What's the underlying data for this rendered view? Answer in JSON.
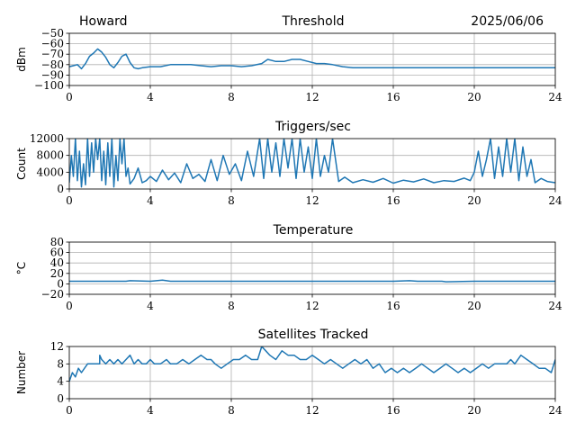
{
  "header": {
    "left": "Howard",
    "center": "Threshold",
    "right": "2025/06/06"
  },
  "colors": {
    "series": "#1f77b4",
    "grid": "#b0b0b0"
  },
  "chart_data": [
    {
      "type": "line",
      "title": "Threshold",
      "ylabel": "dBm",
      "xlim": [
        0,
        24
      ],
      "ylim": [
        -100,
        -50
      ],
      "xticks": [
        0,
        4,
        8,
        12,
        16,
        20,
        24
      ],
      "yticks": [
        -100,
        -90,
        -80,
        -70,
        -60,
        -50
      ],
      "ytick_labels": [
        "−100",
        "−90",
        "−80",
        "−70",
        "−60",
        "−50"
      ],
      "grid": true,
      "series": [
        {
          "x": [
            0,
            0.2,
            0.4,
            0.6,
            0.8,
            1.0,
            1.2,
            1.4,
            1.6,
            1.8,
            2.0,
            2.2,
            2.4,
            2.6,
            2.8,
            3.0,
            3.2,
            3.4,
            3.6,
            4.0,
            4.5,
            5.0,
            5.5,
            6.0,
            6.5,
            7.0,
            7.5,
            8.0,
            8.5,
            9.0,
            9.5,
            9.8,
            10.2,
            10.6,
            11.0,
            11.4,
            11.8,
            12.2,
            12.6,
            13.0,
            13.5,
            14,
            15,
            16,
            17,
            18,
            19,
            20,
            21,
            22,
            23,
            24
          ],
          "y": [
            -82,
            -81,
            -80,
            -84,
            -79,
            -72,
            -69,
            -65,
            -68,
            -73,
            -80,
            -83,
            -78,
            -72,
            -70,
            -78,
            -83,
            -84,
            -83,
            -82,
            -82,
            -80,
            -80,
            -80,
            -81,
            -82,
            -81,
            -81,
            -82,
            -81,
            -79,
            -75,
            -77,
            -77,
            -75,
            -75,
            -77,
            -79,
            -79,
            -80,
            -82,
            -83,
            -83,
            -83,
            -83,
            -83,
            -83,
            -83,
            -83,
            -83,
            -83,
            -83
          ]
        }
      ]
    },
    {
      "type": "line",
      "title": "Triggers/sec",
      "ylabel": "Count",
      "xlim": [
        0,
        24
      ],
      "ylim": [
        0,
        12000
      ],
      "xticks": [
        0,
        4,
        8,
        12,
        16,
        20,
        24
      ],
      "yticks": [
        0,
        4000,
        8000,
        12000
      ],
      "ytick_labels": [
        "0",
        "4000",
        "8000",
        "12000"
      ],
      "grid": true,
      "series": [
        {
          "x": [
            0,
            0.1,
            0.2,
            0.3,
            0.4,
            0.5,
            0.6,
            0.7,
            0.8,
            0.9,
            1.0,
            1.1,
            1.2,
            1.3,
            1.4,
            1.5,
            1.6,
            1.7,
            1.8,
            1.9,
            2.0,
            2.1,
            2.2,
            2.3,
            2.4,
            2.5,
            2.6,
            2.7,
            2.8,
            2.9,
            3.0,
            3.2,
            3.4,
            3.6,
            3.8,
            4.0,
            4.3,
            4.6,
            4.9,
            5.2,
            5.5,
            5.8,
            6.1,
            6.4,
            6.7,
            7.0,
            7.3,
            7.6,
            7.9,
            8.2,
            8.5,
            8.8,
            9.1,
            9.4,
            9.6,
            9.8,
            10.0,
            10.2,
            10.4,
            10.6,
            10.8,
            11.0,
            11.2,
            11.4,
            11.6,
            11.8,
            12.0,
            12.2,
            12.4,
            12.6,
            12.8,
            13.0,
            13.3,
            13.6,
            14.0,
            14.5,
            15.0,
            15.5,
            16.0,
            16.5,
            17.0,
            17.5,
            18.0,
            18.5,
            19.0,
            19.5,
            19.8,
            20.0,
            20.2,
            20.4,
            20.6,
            20.8,
            21.0,
            21.2,
            21.4,
            21.6,
            21.8,
            22.0,
            22.2,
            22.4,
            22.6,
            22.8,
            23.0,
            23.3,
            23.6,
            24.0
          ],
          "y": [
            1500,
            8000,
            3000,
            12000,
            2000,
            9000,
            500,
            6000,
            1000,
            12000,
            3000,
            11000,
            4000,
            12000,
            7000,
            12000,
            2000,
            9000,
            1000,
            11000,
            3000,
            12000,
            500,
            8000,
            2000,
            12000,
            6000,
            12000,
            3000,
            5000,
            1200,
            2500,
            5000,
            1500,
            2000,
            3000,
            1800,
            4500,
            2200,
            3800,
            1500,
            6000,
            2500,
            3500,
            1800,
            7000,
            2000,
            8000,
            3500,
            6000,
            2000,
            9000,
            3000,
            12000,
            2500,
            12000,
            4000,
            11000,
            3000,
            12000,
            5000,
            12000,
            2500,
            12000,
            4000,
            10000,
            2500,
            12000,
            3000,
            8000,
            4000,
            12000,
            1800,
            2800,
            1500,
            2200,
            1600,
            2500,
            1400,
            2100,
            1700,
            2400,
            1500,
            2000,
            1800,
            2600,
            2000,
            4000,
            9000,
            3000,
            7000,
            12000,
            2500,
            10000,
            3000,
            12000,
            4000,
            12000,
            2000,
            10000,
            3000,
            7000,
            1500,
            2500,
            1800,
            1500
          ]
        }
      ]
    },
    {
      "type": "line",
      "title": "Temperature",
      "ylabel": "°C",
      "xlim": [
        0,
        24
      ],
      "ylim": [
        -20,
        80
      ],
      "xticks": [
        0,
        4,
        8,
        12,
        16,
        20,
        24
      ],
      "yticks": [
        -20,
        0,
        20,
        40,
        60,
        80
      ],
      "ytick_labels": [
        "−20",
        "0",
        "20",
        "40",
        "60",
        "80"
      ],
      "grid": true,
      "series": [
        {
          "x": [
            0,
            2,
            2.8,
            3.0,
            4,
            4.3,
            4.6,
            5,
            8,
            12,
            16,
            16.8,
            17.2,
            18.4,
            18.6,
            20,
            24
          ],
          "y": [
            5,
            5,
            5,
            6,
            5,
            6,
            7,
            5,
            5,
            5,
            5,
            6,
            5,
            5,
            4,
            5,
            5
          ]
        }
      ]
    },
    {
      "type": "line",
      "title": "Satellites Tracked",
      "ylabel": "Number",
      "xlim": [
        0,
        24
      ],
      "ylim": [
        0,
        12
      ],
      "xticks": [
        0,
        4,
        8,
        12,
        16,
        20,
        24
      ],
      "yticks": [
        0,
        4,
        8,
        12
      ],
      "ytick_labels": [
        "0",
        "4",
        "8",
        "12"
      ],
      "grid": true,
      "series": [
        {
          "x": [
            0,
            0.15,
            0.3,
            0.45,
            0.6,
            0.9,
            1.2,
            1.5,
            1.5,
            1.6,
            1.8,
            2.0,
            2.2,
            2.4,
            2.6,
            2.8,
            3.0,
            3.2,
            3.4,
            3.6,
            3.8,
            4.0,
            4.2,
            4.5,
            4.8,
            5.0,
            5.3,
            5.6,
            5.9,
            6.2,
            6.5,
            6.8,
            7.0,
            7.2,
            7.5,
            7.8,
            8.1,
            8.4,
            8.7,
            9.0,
            9.3,
            9.5,
            9.7,
            9.9,
            10.2,
            10.5,
            10.8,
            11.1,
            11.4,
            11.7,
            12.0,
            12.3,
            12.6,
            12.9,
            13.2,
            13.5,
            13.8,
            14.1,
            14.4,
            14.7,
            15.0,
            15.3,
            15.6,
            15.9,
            16.2,
            16.5,
            16.8,
            17.1,
            17.4,
            17.7,
            18.0,
            18.3,
            18.6,
            18.9,
            19.2,
            19.5,
            19.8,
            20.1,
            20.4,
            20.7,
            21.0,
            21.3,
            21.6,
            21.8,
            22.0,
            22.3,
            22.6,
            22.9,
            23.2,
            23.5,
            23.8,
            24.0
          ],
          "y": [
            4,
            6,
            5,
            7,
            6,
            8,
            8,
            8,
            10,
            9,
            8,
            9,
            8,
            9,
            8,
            9,
            10,
            8,
            9,
            8,
            8,
            9,
            8,
            8,
            9,
            8,
            8,
            9,
            8,
            9,
            10,
            9,
            9,
            8,
            7,
            8,
            9,
            9,
            10,
            9,
            9,
            12,
            11,
            10,
            9,
            11,
            10,
            10,
            9,
            9,
            10,
            9,
            8,
            9,
            8,
            7,
            8,
            9,
            8,
            9,
            7,
            8,
            6,
            7,
            6,
            7,
            6,
            7,
            8,
            7,
            6,
            7,
            8,
            7,
            6,
            7,
            6,
            7,
            8,
            7,
            8,
            8,
            8,
            9,
            8,
            10,
            9,
            8,
            7,
            7,
            6,
            9
          ]
        }
      ]
    }
  ]
}
